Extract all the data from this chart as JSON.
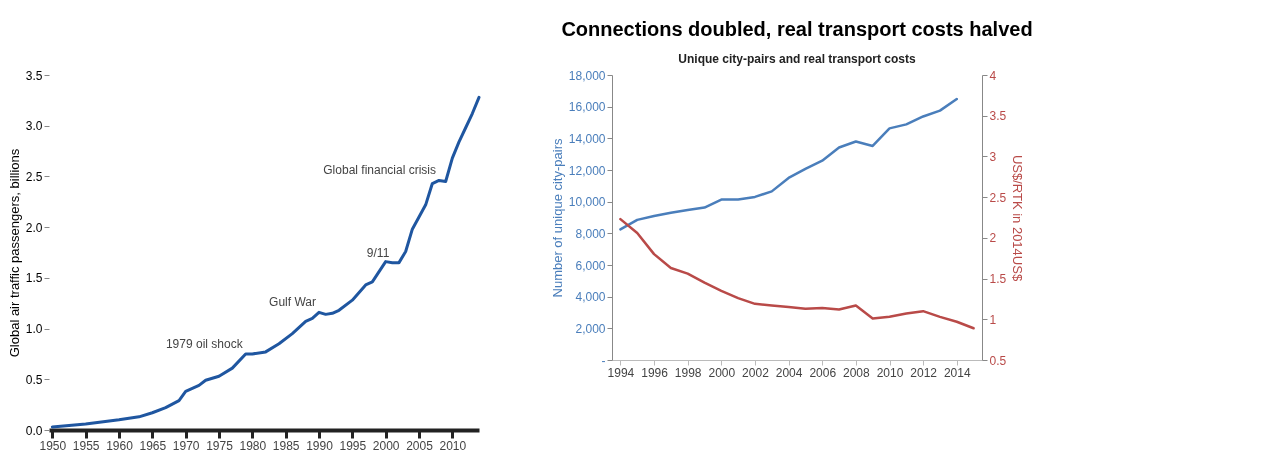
{
  "chart_data": [
    {
      "type": "line",
      "ylabel": "Global air traffic passengers, billions",
      "xlim": [
        1949.5,
        2014
      ],
      "xticks": [
        1950,
        1955,
        1960,
        1965,
        1970,
        1975,
        1980,
        1985,
        1990,
        1995,
        2000,
        2005,
        2010
      ],
      "ylim": [
        0,
        3.5
      ],
      "yticks": [
        {
          "value": 0,
          "label": "0.0"
        },
        0.5,
        {
          "value": 1,
          "label": "1.0"
        },
        1.5,
        {
          "value": 2,
          "label": "2.0"
        },
        2.5,
        {
          "value": 3,
          "label": "3.0"
        },
        3.5
      ],
      "grid": false,
      "x": [
        1950,
        1955,
        1960,
        1963,
        1965,
        1967,
        1969,
        1970,
        1972,
        1973,
        1975,
        1977,
        1979,
        1980,
        1982,
        1984,
        1986,
        1988,
        1989,
        1990,
        1991,
        1992,
        1993,
        1995,
        1997,
        1998,
        2000,
        2001,
        2002,
        2003,
        2004,
        2006,
        2007,
        2008,
        2009,
        2010,
        2011,
        2012,
        2013,
        2014
      ],
      "series": [
        {
          "color": "#1f56a0",
          "values": [
            0.03,
            0.06,
            0.1,
            0.13,
            0.17,
            0.22,
            0.29,
            0.38,
            0.44,
            0.49,
            0.53,
            0.61,
            0.75,
            0.75,
            0.77,
            0.85,
            0.95,
            1.07,
            1.1,
            1.16,
            1.14,
            1.15,
            1.18,
            1.28,
            1.43,
            1.46,
            1.66,
            1.65,
            1.65,
            1.76,
            1.98,
            2.22,
            2.43,
            2.46,
            2.45,
            2.68,
            2.84,
            2.98,
            3.12,
            3.28
          ]
        }
      ],
      "annotations": [
        {
          "text": "Global financial crisis",
          "x": 2008,
          "y": 2.46
        },
        {
          "text": "Gulf War",
          "x": 1990,
          "y": 1.16
        },
        {
          "text": "9/11",
          "x": 2001,
          "y": 1.65
        },
        {
          "text": "1979 oil shock",
          "x": 1979,
          "y": 0.75
        }
      ]
    },
    {
      "type": "line",
      "title": "Connections doubled, real transport costs halved",
      "subtitle": "Unique city-pairs and real transport costs",
      "ylabel": "Number of unique city-pairs",
      "y2label": "US$/RTK in 2014US$",
      "xlim": [
        1993.5,
        2015.5
      ],
      "xticks": [
        1994,
        1996,
        1998,
        2000,
        2002,
        2004,
        2006,
        2008,
        2010,
        2012,
        2014
      ],
      "ylim": [
        0,
        18000
      ],
      "yticks": [
        {
          "value": 0,
          "label": "-"
        },
        {
          "value": 2000,
          "label": "2,000"
        },
        {
          "value": 4000,
          "label": "4,000"
        },
        {
          "value": 6000,
          "label": "6,000"
        },
        {
          "value": 8000,
          "label": "8,000"
        },
        {
          "value": 10000,
          "label": "10,000"
        },
        {
          "value": 12000,
          "label": "12,000"
        },
        {
          "value": 14000,
          "label": "14,000"
        },
        {
          "value": 16000,
          "label": "16,000"
        },
        {
          "value": 18000,
          "label": "18,000"
        }
      ],
      "y2lim": [
        0.5,
        4
      ],
      "y2ticks": [
        0.5,
        1,
        1.5,
        2,
        2.5,
        3,
        3.5,
        4
      ],
      "grid": false,
      "x": [
        1994,
        1995,
        1996,
        1997,
        1998,
        1999,
        2000,
        2001,
        2002,
        2003,
        2004,
        2005,
        2006,
        2007,
        2008,
        2009,
        2010,
        2011,
        2012,
        2013,
        2014,
        2015
      ],
      "series": [
        {
          "color": "#4a7ebb",
          "values": [
            8250,
            8850,
            9100,
            9300,
            9470,
            9630,
            10130,
            10130,
            10300,
            10650,
            11500,
            12070,
            12590,
            13420,
            13800,
            13520,
            14630,
            14880,
            15380,
            15750,
            16480,
            null
          ]
        },
        {
          "color": "#b94a48",
          "axis": "y2",
          "values": [
            2.23,
            2.06,
            1.8,
            1.63,
            1.56,
            1.45,
            1.35,
            1.26,
            1.19,
            1.17,
            1.15,
            1.13,
            1.14,
            1.12,
            1.17,
            1.01,
            1.03,
            1.07,
            1.1,
            1.03,
            0.97,
            0.89
          ]
        }
      ]
    }
  ]
}
